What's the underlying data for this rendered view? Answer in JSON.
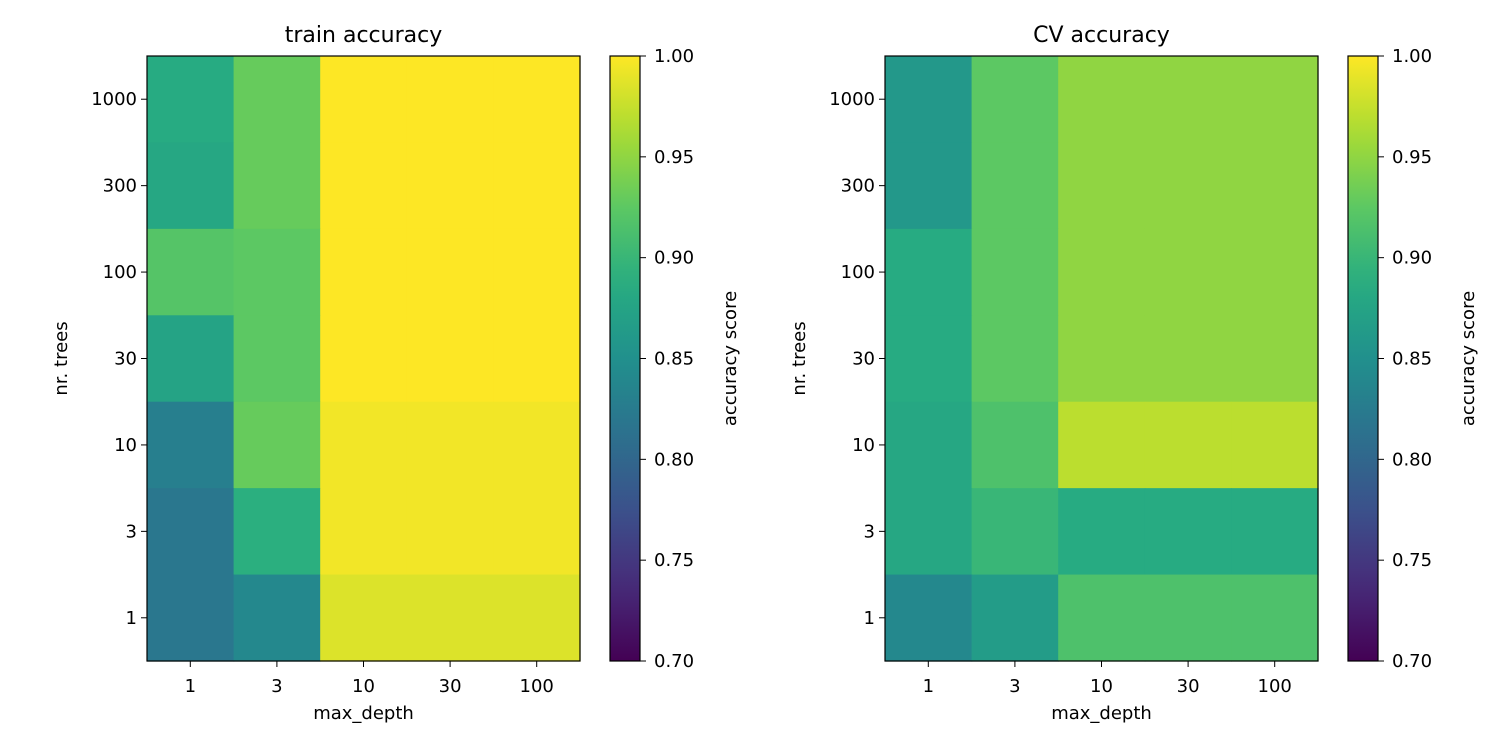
{
  "chart_data": [
    {
      "type": "heatmap",
      "title": "train accuracy",
      "xlabel": "max_depth",
      "ylabel": "nr. trees",
      "x_categories": [
        "1",
        "3",
        "10",
        "30",
        "100"
      ],
      "y_categories": [
        "1000",
        "300",
        "100",
        "30",
        "10",
        "3",
        "1"
      ],
      "values": [
        [
          0.885,
          0.93,
          1.0,
          1.0,
          1.0
        ],
        [
          0.88,
          0.93,
          1.0,
          1.0,
          1.0
        ],
        [
          0.92,
          0.925,
          1.0,
          1.0,
          1.0
        ],
        [
          0.875,
          0.925,
          1.0,
          1.0,
          1.0
        ],
        [
          0.83,
          0.93,
          0.995,
          0.995,
          0.995
        ],
        [
          0.82,
          0.89,
          0.995,
          0.995,
          0.995
        ],
        [
          0.82,
          0.84,
          0.985,
          0.985,
          0.985
        ]
      ],
      "colorbar": {
        "label": "accuracy score",
        "range": [
          0.7,
          1.0
        ],
        "ticks": [
          "0.70",
          "0.75",
          "0.80",
          "0.85",
          "0.90",
          "0.95",
          "1.00"
        ]
      },
      "colormap": "viridis"
    },
    {
      "type": "heatmap",
      "title": "CV accuracy",
      "xlabel": "max_depth",
      "ylabel": "nr. trees",
      "x_categories": [
        "1",
        "3",
        "10",
        "30",
        "100"
      ],
      "y_categories": [
        "1000",
        "300",
        "100",
        "30",
        "10",
        "3",
        "1"
      ],
      "values": [
        [
          0.86,
          0.925,
          0.95,
          0.95,
          0.95
        ],
        [
          0.86,
          0.925,
          0.95,
          0.95,
          0.95
        ],
        [
          0.885,
          0.925,
          0.95,
          0.95,
          0.95
        ],
        [
          0.885,
          0.925,
          0.95,
          0.95,
          0.95
        ],
        [
          0.88,
          0.915,
          0.97,
          0.97,
          0.97
        ],
        [
          0.88,
          0.9,
          0.885,
          0.885,
          0.885
        ],
        [
          0.84,
          0.865,
          0.915,
          0.915,
          0.915
        ]
      ],
      "colorbar": {
        "label": "accuracy score",
        "range": [
          0.7,
          1.0
        ],
        "ticks": [
          "0.70",
          "0.75",
          "0.80",
          "0.85",
          "0.90",
          "0.95",
          "1.00"
        ]
      },
      "colormap": "viridis"
    }
  ]
}
